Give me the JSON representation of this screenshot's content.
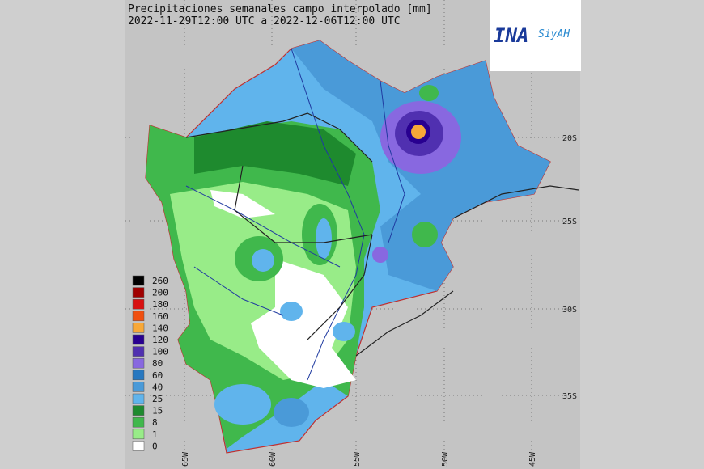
{
  "header": {
    "title_line1": "Precipitaciones semanales campo interpolado [mm]",
    "title_line2": "2022-11-29T12:00 UTC a 2022-12-06T12:00 UTC"
  },
  "logo": {
    "name": "INA",
    "brand": "SiyAH"
  },
  "legend": [
    {
      "label": "260",
      "color": "#000000"
    },
    {
      "label": "200",
      "color": "#a00000"
    },
    {
      "label": "180",
      "color": "#d81010"
    },
    {
      "label": "160",
      "color": "#f05010"
    },
    {
      "label": "140",
      "color": "#f8a838"
    },
    {
      "label": "120",
      "color": "#280090"
    },
    {
      "label": "100",
      "color": "#5030b0"
    },
    {
      "label": "80",
      "color": "#8868e0"
    },
    {
      "label": "60",
      "color": "#2878c0"
    },
    {
      "label": "40",
      "color": "#4a9ad8"
    },
    {
      "label": "25",
      "color": "#60b4ec"
    },
    {
      "label": "15",
      "color": "#1e8a2e"
    },
    {
      "label": "8",
      "color": "#40b84c"
    },
    {
      "label": "1",
      "color": "#98ec88"
    },
    {
      "label": "0",
      "color": "#ffffff"
    }
  ],
  "latitude_labels": [
    "20S",
    "25S",
    "30S",
    "35S"
  ],
  "longitude_labels": [
    "65W",
    "60W",
    "55W",
    "50W",
    "45W"
  ]
}
